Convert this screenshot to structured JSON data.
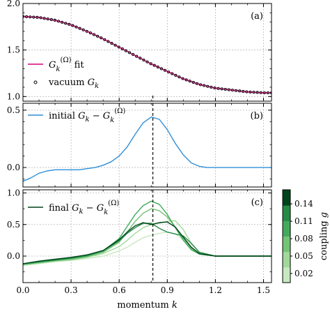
{
  "chart_data": [
    {
      "panel": "(a)",
      "type": "line",
      "xlim": [
        0.0,
        1.55
      ],
      "ylim": [
        0.95,
        2.0
      ],
      "yticks": [
        "1.0",
        "1.5",
        "2.0"
      ],
      "grid": true,
      "legend_placement": "bottom-left",
      "series": [
        {
          "name": "G_k^(Ω) fit",
          "color": "#e0409a",
          "style": "line",
          "x": [
            0.0,
            0.1,
            0.2,
            0.3,
            0.4,
            0.5,
            0.6,
            0.7,
            0.8,
            0.9,
            1.0,
            1.1,
            1.2,
            1.3,
            1.4,
            1.5,
            1.55
          ],
          "y": [
            1.86,
            1.85,
            1.82,
            1.77,
            1.7,
            1.62,
            1.53,
            1.44,
            1.35,
            1.27,
            1.19,
            1.13,
            1.09,
            1.07,
            1.05,
            1.04,
            1.04
          ]
        },
        {
          "name": "vacuum G_k",
          "color": "#000000",
          "style": "markers",
          "x": [
            0.0,
            0.1,
            0.2,
            0.3,
            0.4,
            0.5,
            0.6,
            0.7,
            0.8,
            0.9,
            1.0,
            1.1,
            1.2,
            1.3,
            1.4,
            1.5,
            1.55
          ],
          "y": [
            1.86,
            1.85,
            1.82,
            1.77,
            1.7,
            1.62,
            1.53,
            1.44,
            1.35,
            1.27,
            1.19,
            1.13,
            1.09,
            1.07,
            1.05,
            1.04,
            1.04
          ]
        }
      ]
    },
    {
      "panel": "(b)",
      "type": "line",
      "xlim": [
        0.0,
        1.55
      ],
      "ylim": [
        -0.17,
        0.56
      ],
      "yticks": [
        "0.0",
        "0.5"
      ],
      "grid": true,
      "legend_placement": "top-left",
      "series": [
        {
          "name": "initial G_k − G_k^(Ω)",
          "color": "#2e8fd8",
          "x": [
            0.0,
            0.05,
            0.1,
            0.15,
            0.2,
            0.25,
            0.3,
            0.35,
            0.4,
            0.45,
            0.5,
            0.55,
            0.6,
            0.65,
            0.7,
            0.75,
            0.8,
            0.85,
            0.9,
            0.95,
            1.0,
            1.05,
            1.1,
            1.15,
            1.2,
            1.3,
            1.4,
            1.55
          ],
          "y": [
            -0.12,
            -0.09,
            -0.05,
            -0.03,
            -0.02,
            -0.02,
            -0.02,
            -0.02,
            -0.01,
            0.0,
            0.02,
            0.05,
            0.1,
            0.18,
            0.29,
            0.39,
            0.44,
            0.42,
            0.33,
            0.21,
            0.11,
            0.04,
            0.01,
            0.0,
            0.0,
            0.0,
            0.0,
            0.0
          ]
        }
      ]
    },
    {
      "panel": "(c)",
      "type": "line",
      "xlim": [
        0.0,
        1.55
      ],
      "ylim": [
        -0.42,
        1.05
      ],
      "yticks": [
        "0.0",
        "0.5",
        "1.0"
      ],
      "xticks": [
        "0.0",
        "0.3",
        "0.6",
        "0.9",
        "1.2",
        "1.5"
      ],
      "xlabel": "momentum k",
      "grid": true,
      "legend_placement": "top-left",
      "legend_label": "final G_k − G_k^(Ω)",
      "series": [
        {
          "color": "#c7e9c0",
          "x": [
            0.0,
            0.1,
            0.2,
            0.3,
            0.4,
            0.5,
            0.6,
            0.65,
            0.7,
            0.75,
            0.8,
            0.85,
            0.9,
            0.95,
            1.0,
            1.05,
            1.1,
            1.2,
            1.3,
            1.55
          ],
          "y": [
            -0.15,
            -0.12,
            -0.09,
            -0.07,
            -0.04,
            0.0,
            0.08,
            0.14,
            0.22,
            0.29,
            0.33,
            0.36,
            0.38,
            0.35,
            0.26,
            0.13,
            0.04,
            0.0,
            0.0,
            0.0
          ]
        },
        {
          "color": "#a1d99b",
          "x": [
            0.0,
            0.1,
            0.2,
            0.3,
            0.4,
            0.5,
            0.6,
            0.65,
            0.7,
            0.75,
            0.8,
            0.85,
            0.9,
            0.95,
            1.0,
            1.05,
            1.1,
            1.2,
            1.3,
            1.55
          ],
          "y": [
            -0.14,
            -0.11,
            -0.08,
            -0.06,
            -0.02,
            0.04,
            0.15,
            0.25,
            0.36,
            0.45,
            0.5,
            0.52,
            0.55,
            0.56,
            0.42,
            0.2,
            0.06,
            0.0,
            0.0,
            0.0
          ]
        },
        {
          "color": "#74c476",
          "x": [
            0.0,
            0.1,
            0.2,
            0.3,
            0.4,
            0.5,
            0.6,
            0.65,
            0.7,
            0.75,
            0.8,
            0.85,
            0.9,
            0.95,
            1.0,
            1.05,
            1.1,
            1.2,
            1.3,
            1.55
          ],
          "y": [
            -0.13,
            -0.1,
            -0.07,
            -0.05,
            -0.01,
            0.06,
            0.22,
            0.38,
            0.55,
            0.68,
            0.75,
            0.72,
            0.62,
            0.46,
            0.28,
            0.12,
            0.04,
            0.0,
            0.0,
            0.0
          ]
        },
        {
          "color": "#41ab5d",
          "x": [
            0.0,
            0.1,
            0.2,
            0.3,
            0.4,
            0.5,
            0.6,
            0.65,
            0.7,
            0.75,
            0.8,
            0.85,
            0.9,
            0.95,
            1.0,
            1.05,
            1.1,
            1.2,
            1.3,
            1.55
          ],
          "y": [
            -0.13,
            -0.1,
            -0.07,
            -0.04,
            0.0,
            0.08,
            0.28,
            0.47,
            0.66,
            0.8,
            0.87,
            0.82,
            0.66,
            0.45,
            0.25,
            0.1,
            0.03,
            0.0,
            0.0,
            0.0
          ]
        },
        {
          "color": "#238b45",
          "x": [
            0.0,
            0.1,
            0.2,
            0.3,
            0.4,
            0.5,
            0.6,
            0.65,
            0.7,
            0.75,
            0.8,
            0.85,
            0.9,
            0.95,
            1.0,
            1.05,
            1.1,
            1.2,
            1.3,
            1.55
          ],
          "y": [
            -0.12,
            -0.09,
            -0.06,
            -0.03,
            0.01,
            0.08,
            0.24,
            0.36,
            0.45,
            0.52,
            0.52,
            0.44,
            0.38,
            0.35,
            0.32,
            0.2,
            0.06,
            0.0,
            0.0,
            0.0
          ]
        },
        {
          "color": "#00441b",
          "x": [
            0.0,
            0.1,
            0.2,
            0.3,
            0.4,
            0.5,
            0.6,
            0.65,
            0.7,
            0.75,
            0.8,
            0.85,
            0.9,
            0.95,
            1.0,
            1.05,
            1.1,
            1.2,
            1.3,
            1.55
          ],
          "y": [
            -0.12,
            -0.08,
            -0.05,
            -0.02,
            0.02,
            0.09,
            0.26,
            0.38,
            0.48,
            0.53,
            0.5,
            0.53,
            0.54,
            0.46,
            0.3,
            0.14,
            0.04,
            0.0,
            0.0,
            0.0
          ]
        }
      ]
    }
  ],
  "reference_line_k": 0.81,
  "colorbar": {
    "label": "coupling g",
    "ticks": [
      "0.02",
      "0.05",
      "0.08",
      "0.11",
      "0.14"
    ],
    "colors": [
      "#c7e9c0",
      "#a1d99b",
      "#74c476",
      "#41ab5d",
      "#238b45",
      "#00441b"
    ]
  }
}
